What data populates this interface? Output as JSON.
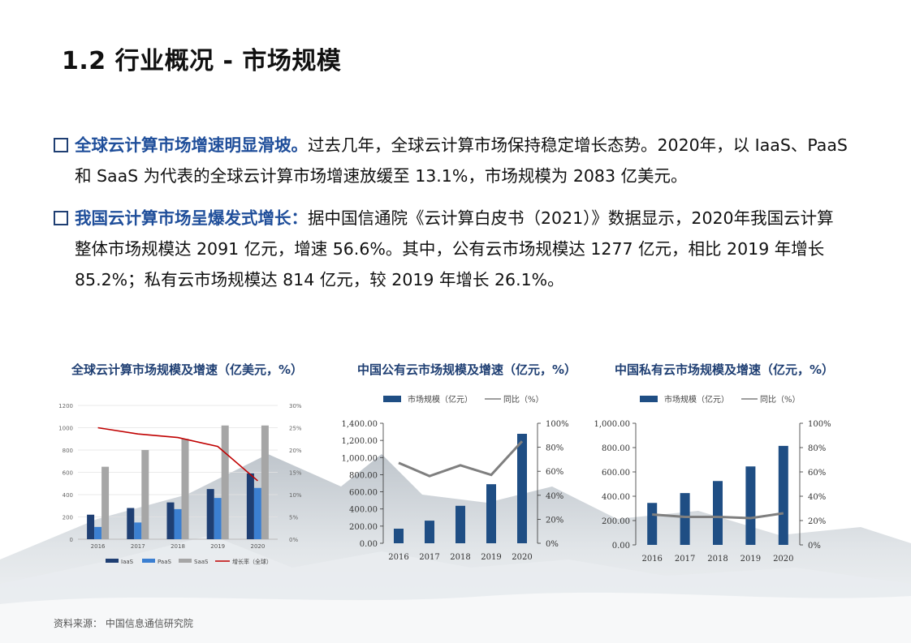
{
  "header": {
    "title": "1.2 行业概况 - 市场规模"
  },
  "bullets": [
    {
      "highlight": "全球云计算市场增速明显滑坡。",
      "line1": "过去几年，全球云计算市场保持稳定增长态势。2020年，以 IaaS、PaaS",
      "line2": "和 SaaS 为代表的全球云计算市场增速放缓至 13.1%，市场规模为 2083 亿美元。"
    },
    {
      "highlight": "我国云计算市场呈爆发式增长：",
      "line1": "据中国信通院《云计算白皮书（2021）》数据显示，2020年我国云计算",
      "line2": "整体市场规模达 2091 亿元，增速 56.6%。其中，公有云市场规模达 1277 亿元，相比 2019 年增长",
      "line3": "85.2%；私有云市场规模达 814 亿元，较 2019 年增长 26.1%。"
    }
  ],
  "source": "资料来源： 中国信息通信研究院",
  "colors": {
    "iaas": "#1f3f73",
    "paas": "#3b7fd1",
    "saas": "#a6a6a6",
    "growth_global": "#c00000",
    "bar": "#1f4e84",
    "line": "#7f7f7f",
    "title": "#1f3f73"
  },
  "chart_data": [
    {
      "type": "bar",
      "title": "全球云计算市场规模及增速（亿美元，%）",
      "categories": [
        "2016",
        "2017",
        "2018",
        "2019",
        "2020"
      ],
      "series": [
        {
          "name": "IaaS",
          "values": [
            220,
            280,
            330,
            450,
            590
          ]
        },
        {
          "name": "PaaS",
          "values": [
            110,
            150,
            270,
            370,
            460
          ]
        },
        {
          "name": "SaaS",
          "values": [
            650,
            800,
            900,
            1020,
            1020
          ]
        },
        {
          "name": "增长率（全球）",
          "axis": "right",
          "values": [
            25.0,
            23.6,
            22.8,
            20.8,
            13.1
          ]
        }
      ],
      "yticks": [
        "0",
        "200",
        "400",
        "600",
        "800",
        "1000",
        "1200"
      ],
      "y2ticks": [
        "0%",
        "5%",
        "10%",
        "15%",
        "20%",
        "25%",
        "30%"
      ],
      "ylim": [
        0,
        1200
      ],
      "y2lim": [
        0,
        30
      ],
      "legend": [
        "IaaS",
        "PaaS",
        "SaaS",
        "增长率（全球）"
      ],
      "legend_position": "bottom"
    },
    {
      "type": "bar",
      "title": "中国公有云市场规模及增速（亿元，%）",
      "categories": [
        "2016",
        "2017",
        "2018",
        "2019",
        "2020"
      ],
      "series": [
        {
          "name": "市场规模（亿元）",
          "values": [
            170,
            264,
            437,
            689,
            1277
          ]
        },
        {
          "name": "同比（%）",
          "axis": "right",
          "values": [
            67,
            56,
            65,
            57,
            85
          ]
        }
      ],
      "yticks": [
        "0.00",
        "200.00",
        "400.00",
        "600.00",
        "800.00",
        "1,000.00",
        "1,200.00",
        "1,400.00"
      ],
      "y2ticks": [
        "0%",
        "20%",
        "40%",
        "60%",
        "80%",
        "100%"
      ],
      "ylim": [
        0,
        1400
      ],
      "y2lim": [
        0,
        100
      ],
      "legend": [
        "市场规模（亿元）",
        "同比（%）"
      ],
      "legend_position": "top"
    },
    {
      "type": "bar",
      "title": "中国私有云市场规模及增速（亿元，%）",
      "categories": [
        "2016",
        "2017",
        "2018",
        "2019",
        "2020"
      ],
      "series": [
        {
          "name": "市场规模（亿元）",
          "values": [
            345,
            426,
            525,
            645,
            814
          ]
        },
        {
          "name": "同比（%）",
          "axis": "right",
          "values": [
            25,
            23,
            23,
            22,
            26
          ]
        }
      ],
      "yticks": [
        "0.00",
        "200.00",
        "400.00",
        "600.00",
        "800.00",
        "1,000.00"
      ],
      "y2ticks": [
        "0%",
        "20%",
        "40%",
        "60%",
        "80%",
        "100%"
      ],
      "ylim": [
        0,
        1000
      ],
      "y2lim": [
        0,
        100
      ],
      "legend": [
        "市场规模（亿元）",
        "同比（%）"
      ],
      "legend_position": "top"
    }
  ]
}
